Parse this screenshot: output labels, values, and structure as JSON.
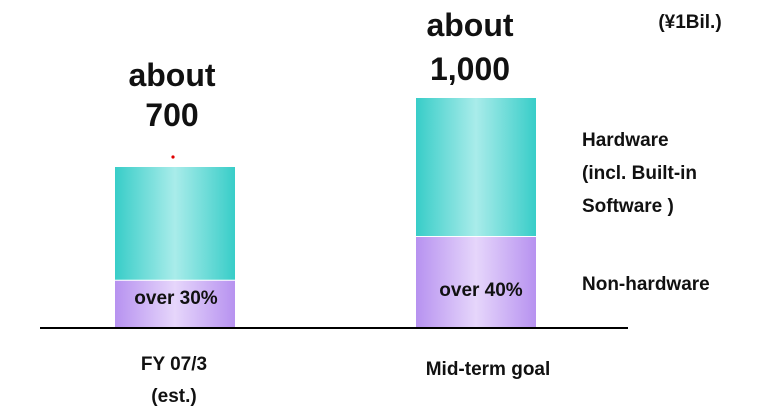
{
  "chart_data": {
    "type": "bar",
    "stacked": true,
    "unit_label": "(¥1Bil.)",
    "categories": [
      "FY 07/3\n(est.)",
      "Mid-term goal"
    ],
    "totals": [
      700,
      1000
    ],
    "total_labels": [
      [
        "about",
        "700"
      ],
      [
        "about",
        "1,000"
      ]
    ],
    "series": [
      {
        "name": "Non-hardware",
        "values": [
          210,
          400
        ],
        "segment_labels": [
          "over 30%",
          "over 40%"
        ],
        "color_dark": "#b792f0",
        "color_light": "#e6d6fb"
      },
      {
        "name": "Hardware (incl. Built-in Software )",
        "values": [
          490,
          600
        ],
        "color_dark": "#38cdc8",
        "color_light": "#a9ecea"
      }
    ],
    "legend_lines": [
      [
        "Hardware",
        "(incl. Built-in",
        "Software )"
      ],
      [
        "Non-hardware"
      ]
    ]
  }
}
